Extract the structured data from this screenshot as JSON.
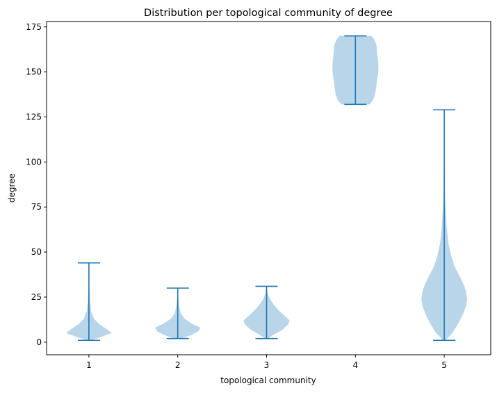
{
  "chart_data": {
    "type": "violin",
    "title": "Distribution per topological community of degree",
    "xlabel": "topological community",
    "ylabel": "degree",
    "ylim": [
      -7,
      178
    ],
    "yticks": [
      0,
      25,
      50,
      75,
      100,
      125,
      150,
      175
    ],
    "categories": [
      "1",
      "2",
      "3",
      "4",
      "5"
    ],
    "grid": false,
    "colors": {
      "body": "#b9d5ea",
      "stroke": "#1f77b4"
    },
    "series": [
      {
        "category": "1",
        "min": 1,
        "max": 44,
        "density": [
          [
            1,
            0.08
          ],
          [
            3,
            0.55
          ],
          [
            5,
            1.0
          ],
          [
            7,
            0.8
          ],
          [
            10,
            0.45
          ],
          [
            13,
            0.22
          ],
          [
            17,
            0.1
          ],
          [
            22,
            0.05
          ],
          [
            28,
            0.03
          ],
          [
            35,
            0.01
          ],
          [
            44,
            0.0
          ]
        ]
      },
      {
        "category": "2",
        "min": 2,
        "max": 30,
        "density": [
          [
            2,
            0.15
          ],
          [
            4,
            0.6
          ],
          [
            6,
            0.9
          ],
          [
            8,
            1.0
          ],
          [
            10,
            0.65
          ],
          [
            13,
            0.3
          ],
          [
            16,
            0.13
          ],
          [
            20,
            0.06
          ],
          [
            25,
            0.02
          ],
          [
            30,
            0.0
          ]
        ]
      },
      {
        "category": "3",
        "min": 2,
        "max": 31,
        "density": [
          [
            2,
            0.05
          ],
          [
            4,
            0.3
          ],
          [
            7,
            0.7
          ],
          [
            10,
            0.95
          ],
          [
            12,
            1.0
          ],
          [
            15,
            0.75
          ],
          [
            18,
            0.5
          ],
          [
            21,
            0.3
          ],
          [
            24,
            0.15
          ],
          [
            27,
            0.05
          ],
          [
            31,
            0.0
          ]
        ]
      },
      {
        "category": "4",
        "min": 132,
        "max": 170,
        "density": [
          [
            132,
            0.62
          ],
          [
            134,
            0.75
          ],
          [
            137,
            0.85
          ],
          [
            141,
            0.9
          ],
          [
            146,
            0.95
          ],
          [
            150,
            1.0
          ],
          [
            155,
            1.0
          ],
          [
            160,
            0.95
          ],
          [
            165,
            0.92
          ],
          [
            168,
            0.82
          ],
          [
            170,
            0.7
          ]
        ]
      },
      {
        "category": "5",
        "min": 1,
        "max": 129,
        "density": [
          [
            1,
            0.05
          ],
          [
            5,
            0.35
          ],
          [
            10,
            0.6
          ],
          [
            15,
            0.8
          ],
          [
            20,
            0.95
          ],
          [
            24,
            1.0
          ],
          [
            28,
            0.95
          ],
          [
            32,
            0.85
          ],
          [
            37,
            0.65
          ],
          [
            42,
            0.45
          ],
          [
            48,
            0.3
          ],
          [
            55,
            0.18
          ],
          [
            65,
            0.1
          ],
          [
            80,
            0.04
          ],
          [
            100,
            0.015
          ],
          [
            129,
            0.0
          ]
        ]
      }
    ]
  }
}
